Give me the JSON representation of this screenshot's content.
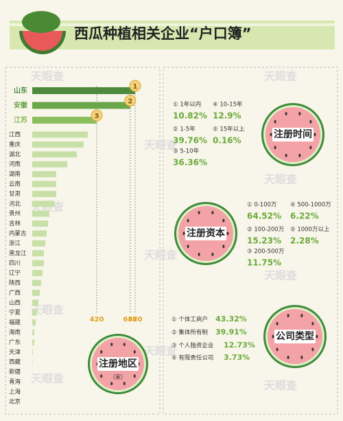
{
  "title": "西瓜种植相关企业“户口簿”",
  "watermark": "天眼查",
  "chart_data": {
    "type": "bar",
    "title": "注册地区",
    "unit": "（家）",
    "categories": [
      "山东",
      "安徽",
      "江苏",
      "江西",
      "重庆",
      "湖北",
      "河南",
      "湖南",
      "云南",
      "甘肃",
      "河北",
      "贵州",
      "吉林",
      "内蒙古",
      "浙江",
      "黑龙江",
      "四川",
      "辽宁",
      "陕西",
      "广西",
      "山西",
      "宁夏",
      "福建",
      "海南",
      "广东",
      "天津",
      "西藏",
      "新疆",
      "青海",
      "上海",
      "北京"
    ],
    "values": [
      670,
      638,
      420,
      362,
      335,
      290,
      228,
      156,
      156,
      156,
      147,
      112,
      103,
      94,
      85,
      76,
      76,
      67,
      58,
      49,
      40,
      31,
      22,
      13,
      13,
      4,
      2,
      1,
      0,
      0,
      0
    ],
    "xticks": [
      420,
      638,
      670
    ],
    "annotations": [
      "1",
      "2",
      "3"
    ],
    "colors": [
      "#4e8a3e",
      "#6aa64a",
      "#8cbd5e",
      "#c8e0a8"
    ]
  },
  "sections": [
    {
      "title": "注册时间",
      "items": [
        {
          "label": "① 1年以内",
          "value": "10.82%"
        },
        {
          "label": "④ 10-15年",
          "value": "12.9%"
        },
        {
          "label": "② 1-5年",
          "value": "39.76%"
        },
        {
          "label": "⑤ 15年以上",
          "value": "0.16%"
        },
        {
          "label": "③ 5-10年",
          "value": "36.36%"
        }
      ]
    },
    {
      "title": "注册资本",
      "items": [
        {
          "label": "① 0-100万",
          "value": "64.52%"
        },
        {
          "label": "④ 500-1000万",
          "value": "6.22%"
        },
        {
          "label": "② 100-200万",
          "value": "15.23%"
        },
        {
          "label": "⑤ 1000万以上",
          "value": "2.28%"
        },
        {
          "label": "③ 200-500万",
          "value": "11.75%"
        }
      ]
    },
    {
      "title": "公司类型",
      "items": [
        {
          "label": "① 个体工商户",
          "value": "43.32%"
        },
        {
          "label": "② 集体所有制",
          "value": "39.91%"
        },
        {
          "label": "③ 个人独资企业",
          "value": "12.73%"
        },
        {
          "label": "④ 有限责任公司",
          "value": "3.73%"
        }
      ]
    }
  ]
}
